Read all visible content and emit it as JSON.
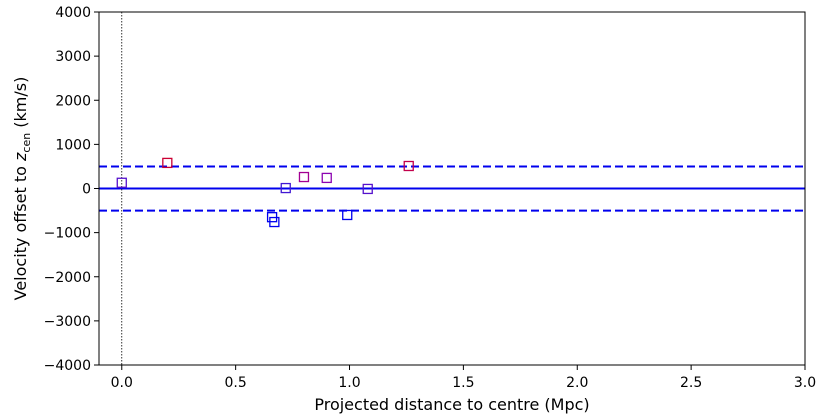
{
  "chart_data": {
    "type": "scatter",
    "xlabel": "Projected distance to centre (Mpc)",
    "ylabel_prefix": "Velocity offset to ",
    "ylabel_var": "z",
    "ylabel_sub": "cen",
    "ylabel_suffix": " (km/s)",
    "xlim": [
      -0.1,
      3.0
    ],
    "ylim": [
      -4000,
      4000
    ],
    "xticks": [
      0.0,
      0.5,
      1.0,
      1.5,
      2.0,
      2.5,
      3.0
    ],
    "xtick_labels": [
      "0.0",
      "0.5",
      "1.0",
      "1.5",
      "2.0",
      "2.5",
      "3.0"
    ],
    "yticks": [
      -4000,
      -3000,
      -2000,
      -1000,
      0,
      1000,
      2000,
      3000,
      4000
    ],
    "ytick_labels": [
      "−4000",
      "−3000",
      "−2000",
      "−1000",
      "0",
      "1000",
      "2000",
      "3000",
      "4000"
    ],
    "grid": false,
    "reference_lines": [
      {
        "orientation": "horizontal",
        "value": 0,
        "style": "solid",
        "color": "#0000ee"
      },
      {
        "orientation": "horizontal",
        "value": 500,
        "style": "dashed",
        "color": "#0000ee"
      },
      {
        "orientation": "horizontal",
        "value": -500,
        "style": "dashed",
        "color": "#0000ee"
      },
      {
        "orientation": "vertical",
        "value": 0,
        "style": "dotted",
        "color": "#000000"
      }
    ],
    "series": [
      {
        "marker": "square-open",
        "colors": [
          "#cc0033",
          "#9900aa",
          "#5511cc",
          "#2222dd",
          "#0000ee"
        ],
        "points": [
          {
            "x": 0.0,
            "y": 130,
            "c": 0.5
          },
          {
            "x": 0.2,
            "y": 580,
            "c": 0.0
          },
          {
            "x": 0.66,
            "y": -650,
            "c": 1.0
          },
          {
            "x": 0.67,
            "y": -760,
            "c": 1.0
          },
          {
            "x": 0.72,
            "y": 10,
            "c": 0.6
          },
          {
            "x": 0.8,
            "y": 260,
            "c": 0.2
          },
          {
            "x": 0.9,
            "y": 240,
            "c": 0.3
          },
          {
            "x": 0.99,
            "y": -600,
            "c": 1.0
          },
          {
            "x": 1.08,
            "y": -10,
            "c": 0.5
          },
          {
            "x": 1.26,
            "y": 510,
            "c": 0.05
          }
        ]
      }
    ]
  }
}
